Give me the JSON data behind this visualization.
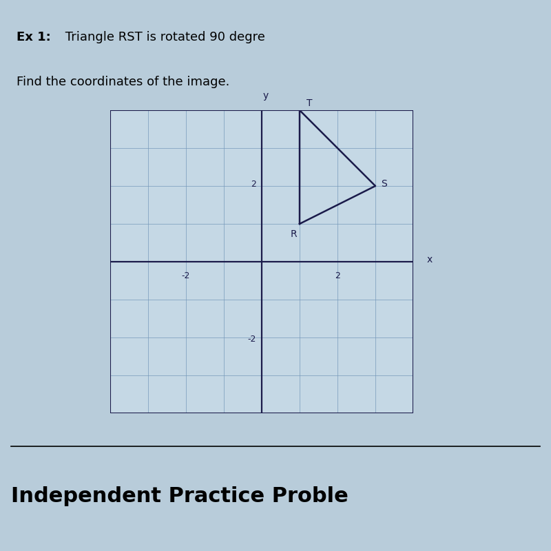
{
  "title_bold": "Ex 1:",
  "title_rest": " Triangle RST is rotated 90 degre",
  "title_line2": "Find the coordinates of the image.",
  "footer_text": "Independent Practice Proble",
  "triangle_RST": {
    "R": [
      1,
      1
    ],
    "S": [
      3,
      2
    ],
    "T": [
      1,
      4
    ]
  },
  "triangle_color": "#1a1a4a",
  "triangle_linewidth": 1.8,
  "axis_color": "#1a1a4a",
  "grid_color": "#7799bb",
  "grid_linewidth": 0.5,
  "background_color": "#b8ccda",
  "plot_bg_color": "#c5d8e5",
  "xlim": [
    -4,
    4
  ],
  "ylim": [
    -4,
    4
  ],
  "label_fontsize": 10,
  "vertex_label_fontsize": 10,
  "title_fontsize": 13,
  "footer_fontsize": 22
}
